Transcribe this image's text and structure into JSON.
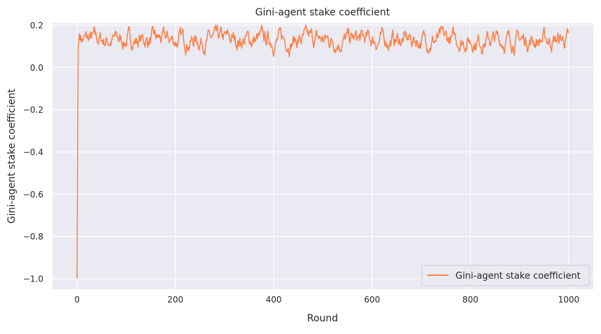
{
  "chart_data": {
    "type": "line",
    "title": "Gini-agent stake coefficient",
    "xlabel": "Round",
    "ylabel": "Gini-agent stake coefficient",
    "xlim": [
      -50,
      1050
    ],
    "ylim": [
      -1.05,
      0.21
    ],
    "xticks": [
      0,
      200,
      400,
      600,
      800,
      1000
    ],
    "xtick_labels": [
      "0",
      "200",
      "400",
      "600",
      "800",
      "1000"
    ],
    "yticks": [
      -1.0,
      -0.8,
      -0.6,
      -0.4,
      -0.2,
      0.0,
      0.2
    ],
    "ytick_labels": [
      "−1.0",
      "−0.8",
      "−0.6",
      "−0.4",
      "−0.2",
      "0.0",
      "0.2"
    ],
    "grid": true,
    "legend_position": "lower-right",
    "series": [
      {
        "name": "Gini-agent stake coefficient",
        "color": "#ff7f45",
        "x_start": 0,
        "x_step": 1,
        "description_of_generation": "",
        "initial_values": [
          -1.0,
          -0.4,
          0.08,
          0.12,
          0.14,
          0.16
        ],
        "baseline": 0.13,
        "amplitude": 0.035,
        "min": 0.05,
        "max": 0.2,
        "n_points": 1001,
        "seed": 7
      }
    ]
  }
}
